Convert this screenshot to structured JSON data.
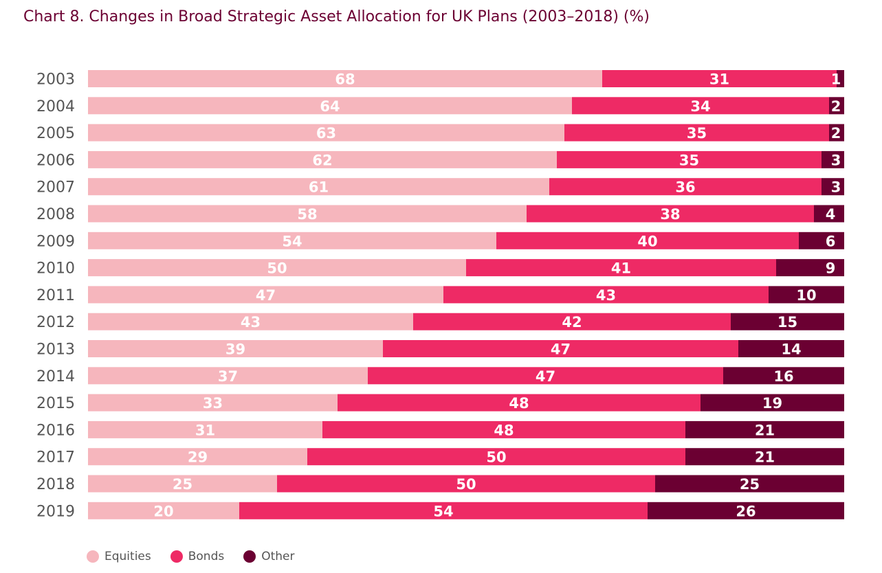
{
  "title": "Chart 8. Changes in Broad Strategic Asset Allocation for UK Plans (2003–2018) (%)",
  "chart_data": {
    "type": "bar",
    "orientation": "horizontal",
    "stacked": true,
    "title": "Chart 8. Changes in Broad Strategic Asset Allocation for UK Plans (2003–2018) (%)",
    "categories": [
      "2003",
      "2004",
      "2005",
      "2006",
      "2007",
      "2008",
      "2009",
      "2010",
      "2011",
      "2012",
      "2013",
      "2014",
      "2015",
      "2016",
      "2017",
      "2018",
      "2019"
    ],
    "series": [
      {
        "name": "Equities",
        "color": "#f6b6bd",
        "values": [
          68,
          64,
          63,
          62,
          61,
          58,
          54,
          50,
          47,
          43,
          39,
          37,
          33,
          31,
          29,
          25,
          20
        ]
      },
      {
        "name": "Bonds",
        "color": "#ee2a65",
        "values": [
          31,
          34,
          35,
          35,
          36,
          38,
          40,
          41,
          43,
          42,
          47,
          47,
          48,
          48,
          50,
          50,
          54
        ]
      },
      {
        "name": "Other",
        "color": "#6b0032",
        "values": [
          1,
          2,
          2,
          3,
          3,
          4,
          6,
          9,
          10,
          15,
          14,
          16,
          19,
          21,
          21,
          25,
          26
        ]
      }
    ],
    "legend_position": "bottom-left",
    "grid": false
  }
}
